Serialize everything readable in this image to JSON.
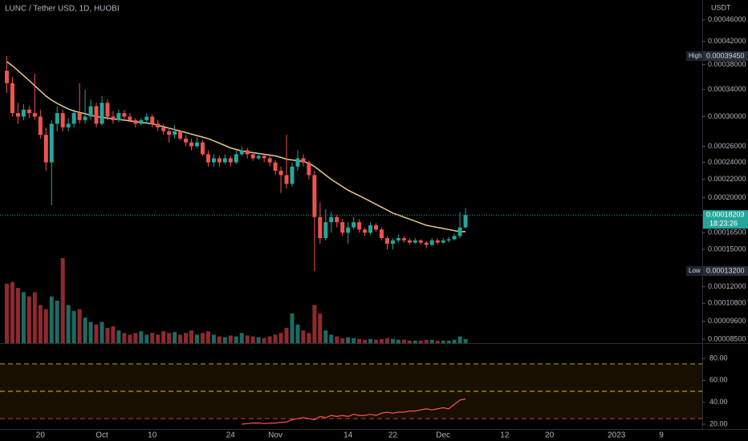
{
  "chart_data": {
    "type": "candlestick",
    "title": "LUNC / Tether USD, 1D, HUOBI",
    "unit": "USDT",
    "x": [
      "Sep 14",
      "Sep 15",
      "Sep 16",
      "Sep 17",
      "Sep 18",
      "Sep 19",
      "Sep 20",
      "Sep 21",
      "Sep 22",
      "Sep 23",
      "Sep 24",
      "Sep 25",
      "Sep 26",
      "Sep 27",
      "Sep 28",
      "Sep 29",
      "Sep 30",
      "Oct 1",
      "Oct 2",
      "Oct 3",
      "Oct 4",
      "Oct 5",
      "Oct 6",
      "Oct 7",
      "Oct 8",
      "Oct 9",
      "Oct 10",
      "Oct 11",
      "Oct 12",
      "Oct 13",
      "Oct 14",
      "Oct 15",
      "Oct 16",
      "Oct 17",
      "Oct 18",
      "Oct 19",
      "Oct 20",
      "Oct 21",
      "Oct 22",
      "Oct 23",
      "Oct 24",
      "Oct 25",
      "Oct 26",
      "Oct 27",
      "Oct 28",
      "Oct 29",
      "Oct 30",
      "Oct 31",
      "Nov 1",
      "Nov 2",
      "Nov 3",
      "Nov 4",
      "Nov 5",
      "Nov 6",
      "Nov 7",
      "Nov 8",
      "Nov 9",
      "Nov 10",
      "Nov 11",
      "Nov 12",
      "Nov 13",
      "Nov 14",
      "Nov 15",
      "Nov 16",
      "Nov 17",
      "Nov 18",
      "Nov 19",
      "Nov 20",
      "Nov 21",
      "Nov 22",
      "Nov 23",
      "Nov 24",
      "Nov 25",
      "Nov 26",
      "Nov 27",
      "Nov 28",
      "Nov 29",
      "Nov 30",
      "Dec 1",
      "Dec 2",
      "Dec 3",
      "Dec 4",
      "Dec 5"
    ],
    "open": [
      0.00037,
      0.00035,
      0.000305,
      0.0003,
      0.00031,
      0.000305,
      0.0003,
      0.000275,
      0.00024,
      0.00029,
      0.000305,
      0.000285,
      0.00029,
      0.000305,
      0.000295,
      0.0003,
      0.000315,
      0.00029,
      0.00032,
      0.0003,
      0.000295,
      0.000305,
      0.0003,
      0.000295,
      0.00029,
      0.000295,
      0.0003,
      0.00029,
      0.000285,
      0.00028,
      0.000275,
      0.00028,
      0.00027,
      0.000265,
      0.00026,
      0.000265,
      0.00025,
      0.00024,
      0.000245,
      0.00024,
      0.000245,
      0.00024,
      0.00025,
      0.000255,
      0.00025,
      0.000245,
      0.000248,
      0.000245,
      0.00024,
      0.00023,
      0.000225,
      0.000215,
      0.000235,
      0.000245,
      0.00024,
      0.000225,
      0.00018,
      0.00016,
      0.000175,
      0.00018,
      0.000175,
      0.000165,
      0.00017,
      0.000175,
      0.000168,
      0.000165,
      0.000172,
      0.000168,
      0.00016,
      0.000155,
      0.000158,
      0.00016,
      0.000158,
      0.000156,
      0.000158,
      0.000156,
      0.000154,
      0.000158,
      0.000156,
      0.000158,
      0.000159,
      0.000162,
      0.00017
    ],
    "high": [
      0.0003945,
      0.00036,
      0.00032,
      0.000318,
      0.000315,
      0.000365,
      0.00031,
      0.000285,
      0.000295,
      0.000315,
      0.00031,
      0.000298,
      0.00031,
      0.00035,
      0.00034,
      0.000325,
      0.00032,
      0.00033,
      0.000325,
      0.000308,
      0.00031,
      0.00031,
      0.000305,
      0.000298,
      0.000298,
      0.000305,
      0.000303,
      0.000295,
      0.00029,
      0.000285,
      0.000288,
      0.000282,
      0.000275,
      0.00027,
      0.000272,
      0.000268,
      0.000255,
      0.00025,
      0.000248,
      0.00025,
      0.000248,
      0.000255,
      0.00026,
      0.000258,
      0.000253,
      0.000252,
      0.00025,
      0.000248,
      0.000243,
      0.000235,
      0.000275,
      0.00024,
      0.000255,
      0.00025,
      0.000242,
      0.00023,
      0.000195,
      0.000188,
      0.000185,
      0.000182,
      0.000178,
      0.000175,
      0.00018,
      0.000178,
      0.00017,
      0.000175,
      0.000174,
      0.00017,
      0.000162,
      0.00016,
      0.000163,
      0.000162,
      0.00016,
      0.00016,
      0.000159,
      0.000157,
      0.00016,
      0.00016,
      0.00016,
      0.000161,
      0.000164,
      0.000185,
      0.000189
    ],
    "low": [
      0.000335,
      0.0003,
      0.00029,
      0.000295,
      0.000298,
      0.000295,
      0.00027,
      0.00023,
      0.000192,
      0.00028,
      0.00028,
      0.00028,
      0.000285,
      0.00029,
      0.00029,
      0.000295,
      0.000285,
      0.000288,
      0.000295,
      0.00029,
      0.000292,
      0.000295,
      0.000292,
      0.000285,
      0.000288,
      0.00029,
      0.000285,
      0.00028,
      0.000275,
      0.000265,
      0.00027,
      0.000268,
      0.00026,
      0.000255,
      0.000258,
      0.000248,
      0.000235,
      0.000235,
      0.000235,
      0.000238,
      0.000235,
      0.000238,
      0.000248,
      0.000245,
      0.000242,
      0.000243,
      0.00024,
      0.000235,
      0.000225,
      0.000205,
      0.00021,
      0.000212,
      0.00023,
      0.000235,
      0.00022,
      0.000132,
      0.000155,
      0.000158,
      0.000165,
      0.00017,
      0.000162,
      0.000155,
      0.000168,
      0.000165,
      0.000162,
      0.000163,
      0.000166,
      0.000158,
      0.00015,
      0.00015,
      0.000156,
      0.000156,
      0.000154,
      0.000155,
      0.000154,
      0.000151,
      0.000153,
      0.000154,
      0.000155,
      0.000156,
      0.000158,
      0.00016,
      0.000169
    ],
    "close": [
      0.00035,
      0.000305,
      0.0003,
      0.00031,
      0.000305,
      0.0003,
      0.000275,
      0.00024,
      0.00029,
      0.000305,
      0.000285,
      0.00029,
      0.000305,
      0.000295,
      0.0003,
      0.000315,
      0.00029,
      0.00032,
      0.0003,
      0.000295,
      0.000305,
      0.0003,
      0.000295,
      0.00029,
      0.000295,
      0.0003,
      0.00029,
      0.000285,
      0.00028,
      0.000275,
      0.00028,
      0.00027,
      0.000265,
      0.00026,
      0.000265,
      0.00025,
      0.00024,
      0.000245,
      0.00024,
      0.000245,
      0.00024,
      0.00025,
      0.000255,
      0.00025,
      0.000245,
      0.000248,
      0.000245,
      0.00024,
      0.00023,
      0.000225,
      0.000215,
      0.000235,
      0.000245,
      0.00024,
      0.000225,
      0.00018,
      0.00016,
      0.000175,
      0.00018,
      0.000175,
      0.000165,
      0.00017,
      0.000175,
      0.000168,
      0.000165,
      0.000172,
      0.000168,
      0.00016,
      0.000155,
      0.000158,
      0.00016,
      0.000158,
      0.000156,
      0.000158,
      0.000156,
      0.000154,
      0.000158,
      0.000156,
      0.000158,
      0.000159,
      0.000162,
      0.00017,
      0.00018203
    ],
    "volume": [
      70,
      72,
      65,
      60,
      55,
      60,
      45,
      40,
      55,
      50,
      100,
      45,
      38,
      40,
      30,
      25,
      22,
      25,
      18,
      20,
      15,
      12,
      10,
      12,
      14,
      10,
      12,
      10,
      14,
      12,
      13,
      10,
      12,
      15,
      10,
      12,
      14,
      10,
      8,
      7,
      9,
      8,
      12,
      9,
      8,
      7,
      6,
      8,
      10,
      12,
      18,
      35,
      22,
      15,
      12,
      45,
      35,
      15,
      10,
      8,
      6,
      7,
      6,
      5,
      4,
      5,
      4,
      5,
      6,
      5,
      4,
      4,
      3,
      3,
      3,
      4,
      4,
      3,
      3,
      3,
      4,
      8,
      5
    ],
    "moving_average": [
      0.000385,
      0.000378,
      0.00037,
      0.000362,
      0.000354,
      0.000346,
      0.000338,
      0.00033,
      0.000324,
      0.000319,
      0.000315,
      0.000311,
      0.000308,
      0.000306,
      0.000304,
      0.000302,
      0.0003,
      0.000299,
      0.000298,
      0.000297,
      0.000296,
      0.000295,
      0.000294,
      0.000293,
      0.000292,
      0.000291,
      0.00029,
      0.000288,
      0.000286,
      0.000284,
      0.000282,
      0.00028,
      0.000278,
      0.000276,
      0.000274,
      0.000272,
      0.00027,
      0.000267,
      0.000264,
      0.000261,
      0.000258,
      0.000256,
      0.000254,
      0.000253,
      0.000252,
      0.000251,
      0.00025,
      0.000249,
      0.000248,
      0.000246,
      0.000244,
      0.000243,
      0.000242,
      0.000241,
      0.000239,
      0.000235,
      0.00023,
      0.000225,
      0.00022,
      0.000216,
      0.000212,
      0.000208,
      0.000205,
      0.000202,
      0.000199,
      0.000196,
      0.000193,
      0.00019,
      0.000187,
      0.000184,
      0.000182,
      0.00018,
      0.000178,
      0.000176,
      0.000174,
      0.000172,
      0.000171,
      0.00017,
      0.000169,
      0.000168,
      0.000167,
      0.000166,
      0.000166
    ],
    "rsi": [
      null,
      null,
      null,
      null,
      null,
      null,
      null,
      null,
      null,
      null,
      null,
      null,
      null,
      null,
      null,
      null,
      null,
      null,
      null,
      null,
      null,
      null,
      null,
      null,
      null,
      null,
      null,
      null,
      null,
      null,
      null,
      null,
      null,
      null,
      null,
      null,
      null,
      null,
      null,
      null,
      null,
      null,
      20,
      20.5,
      21,
      21,
      20.5,
      21,
      21,
      21.5,
      22,
      24,
      25,
      26,
      25,
      24,
      27,
      26,
      28,
      27,
      28,
      27,
      29,
      28,
      28,
      29,
      28,
      30,
      31,
      30,
      31,
      31,
      32,
      32,
      33,
      34,
      33,
      34,
      35,
      34,
      38,
      42,
      43
    ],
    "up_color": "#26a69a",
    "down_color": "#ef5350",
    "up_volume_color": "#1d6b63",
    "down_volume_color": "#8e2a2e",
    "ma_color": "#e9c98c",
    "rsi_color": "#ff5252",
    "ylim": [
      8.28e-05,
      0.000499
    ],
    "yticks": [
      {
        "value": 0.00046,
        "label": "0.00046000"
      },
      {
        "value": 0.00042,
        "label": "0.00042000"
      },
      {
        "value": 0.00038,
        "label": "0.00038000"
      },
      {
        "value": 0.00034,
        "label": "0.00034000"
      },
      {
        "value": 0.0003,
        "label": "0.00030000"
      },
      {
        "value": 0.00026,
        "label": "0.00026000"
      },
      {
        "value": 0.00024,
        "label": "0.00024000"
      },
      {
        "value": 0.00022,
        "label": "0.00022000"
      },
      {
        "value": 0.0002,
        "label": "0.00020000"
      },
      {
        "value": 0.000165,
        "label": "0.00016500"
      },
      {
        "value": 0.00015,
        "label": "0.00015000"
      },
      {
        "value": 0.00012,
        "label": "0.00012000"
      },
      {
        "value": 0.000108,
        "label": "0.00010800"
      },
      {
        "value": 9.6e-05,
        "label": "0.00009600"
      },
      {
        "value": 8.5e-05,
        "label": "0.00008500"
      }
    ],
    "xticks": [
      {
        "value": "Sep 20",
        "label": "20"
      },
      {
        "value": "Oct 1",
        "label": "Oct"
      },
      {
        "value": "Oct 10",
        "label": "10"
      },
      {
        "value": "Oct 24",
        "label": "24"
      },
      {
        "value": "Nov 1",
        "label": "Nov"
      },
      {
        "value": "Nov 14",
        "label": "14"
      },
      {
        "value": "Nov 22",
        "label": "22"
      },
      {
        "value": "Dec 1",
        "label": "Dec"
      },
      {
        "value": "Dec 12",
        "label": "12"
      },
      {
        "value": "Dec 20",
        "label": "20"
      },
      {
        "value": "Jan 1",
        "label": "2023"
      },
      {
        "value": "Jan 9",
        "label": "9"
      }
    ],
    "rsi_ylim": [
      15.6,
      93.9
    ],
    "rsi_yticks": [
      {
        "value": 80,
        "label": "80.00"
      },
      {
        "value": 60,
        "label": "60.00"
      },
      {
        "value": 40,
        "label": "40.00"
      },
      {
        "value": 20,
        "label": "20.00"
      }
    ],
    "rsi_levels": [
      75,
      50,
      25
    ],
    "rsi_level_colors": [
      "#c9a400",
      "#e0bf00",
      "#d23c3c"
    ],
    "markers": [
      {
        "name": "High",
        "value": 0.0003945,
        "value_label": "0.00039450"
      },
      {
        "name": "Low",
        "value": 0.000132,
        "value_label": "0.00013200"
      }
    ],
    "last_price": {
      "value": 0.00018203,
      "value_label": "0.00018203",
      "countdown": "18:23:26"
    }
  }
}
